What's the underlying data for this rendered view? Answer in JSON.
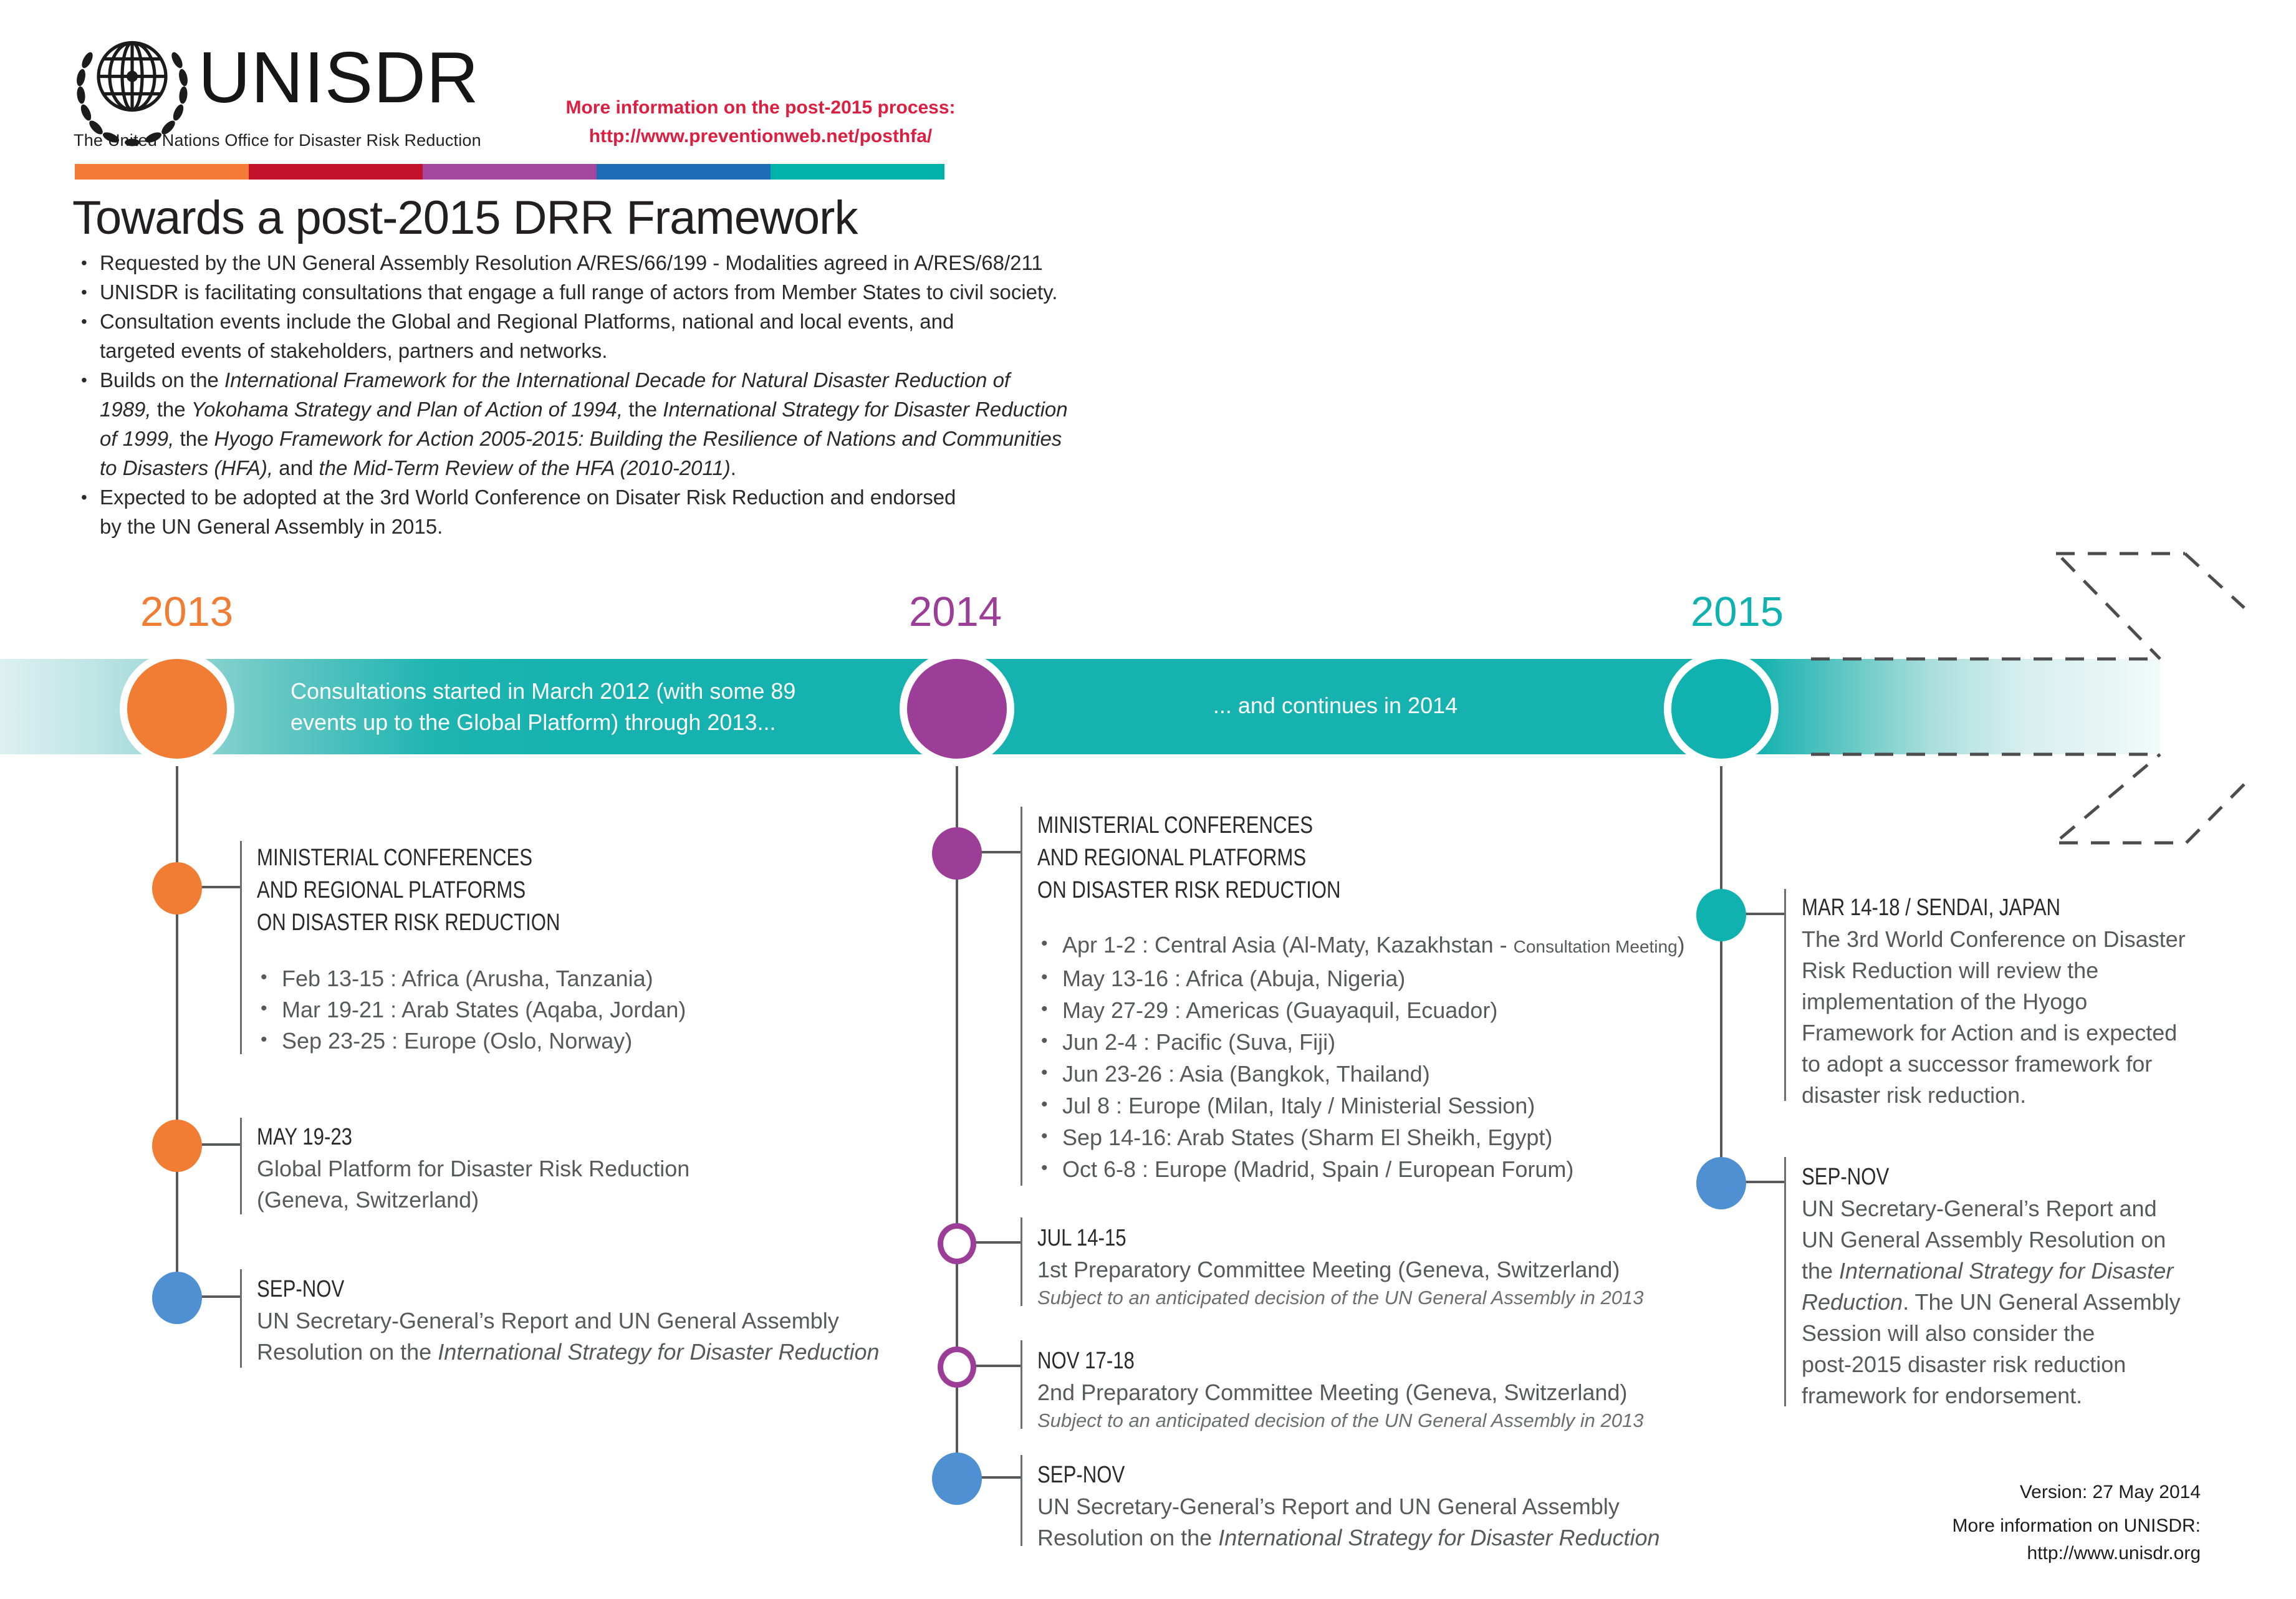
{
  "header": {
    "logo_title": "UNISDR",
    "logo_subtitle": "The United Nations Office for Disaster Risk Reduction",
    "info_label": "More information on the post-2015 process:",
    "info_url": "http://www.preventionweb.net/posthfa/",
    "bar_colors": [
      "#F47B35",
      "#C4122E",
      "#A4459E",
      "#1E6CB5",
      "#00B2A9"
    ]
  },
  "title": "Towards a post-2015 DRR Framework",
  "intro": {
    "bullets": [
      [
        {
          "t": "Requested by the UN General Assembly Resolution A/RES/66/199 - Modalities agreed in A/RES/68/211"
        }
      ],
      [
        {
          "t": "UNISDR is facilitating consultations that engage a full range of actors from Member States to civil society."
        }
      ],
      [
        {
          "t": "Consultation events include the Global and Regional Platforms, national and local events, and\ntargeted events of stakeholders, partners and networks."
        }
      ],
      [
        {
          "t": "Builds on the "
        },
        {
          "t": "International Framework for the International Decade for Natural Disaster Reduction of\n1989,",
          "i": true
        },
        {
          "t": " the "
        },
        {
          "t": "Yokohama Strategy and Plan of Action of 1994,",
          "i": true
        },
        {
          "t": " the "
        },
        {
          "t": "International Strategy for Disaster Reduction\nof 1999,",
          "i": true
        },
        {
          "t": " the "
        },
        {
          "t": "Hyogo Framework for Action 2005-2015: Building the Resilience of Nations and Communities\nto Disasters (HFA),",
          "i": true
        },
        {
          "t": " and "
        },
        {
          "t": "the Mid-Term Review of the HFA (2010-2011)",
          "i": true
        },
        {
          "t": "."
        }
      ],
      [
        {
          "t": "Expected to be adopted at the 3rd World Conference on Disater Risk Reduction and endorsed\nby the UN General Assembly in 2015."
        }
      ]
    ]
  },
  "timeline": {
    "years": [
      {
        "label": "2013",
        "color": "#F07D33"
      },
      {
        "label": "2014",
        "color": "#9C3E98"
      },
      {
        "label": "2015",
        "color": "#0FB2AF"
      }
    ],
    "band_color": "#16B2AF",
    "band_text_2013": "Consultations started in March 2012 (with some 89\nevents up to the Global Platform) through 2013...",
    "band_text_2014": "... and continues in 2014"
  },
  "events": {
    "y2013": [
      {
        "title": "MINISTERIAL CONFERENCES\nAND REGIONAL PLATFORMS\nON DISASTER RISK REDUCTION",
        "list": [
          [
            {
              "t": "Feb 13-15 : Africa (Arusha, Tanzania)"
            }
          ],
          [
            {
              "t": "Mar 19-21 : Arab States (Aqaba, Jordan)"
            }
          ],
          [
            {
              "t": "Sep 23-25 : Europe (Oslo, Norway)"
            }
          ]
        ]
      },
      {
        "title": "MAY 19-23",
        "body": [
          {
            "t": "Global Platform for Disaster Risk Reduction\n(Geneva, Switzerland)"
          }
        ]
      },
      {
        "title": "SEP-NOV",
        "body": [
          {
            "t": "UN Secretary-General’s Report and UN General Assembly\nResolution on the "
          },
          {
            "t": "International Strategy for Disaster Reduction",
            "i": true
          }
        ]
      }
    ],
    "y2014": [
      {
        "title": "MINISTERIAL CONFERENCES\nAND REGIONAL PLATFORMS\nON DISASTER RISK REDUCTION",
        "list": [
          [
            {
              "t": "Apr 1-2 : Central Asia (Al-Maty, Kazakhstan - "
            },
            {
              "t": "Consultation Meeting",
              "s": true
            },
            {
              "t": ")"
            }
          ],
          [
            {
              "t": "May 13-16 : Africa (Abuja, Nigeria)"
            }
          ],
          [
            {
              "t": "May 27-29 : Americas (Guayaquil, Ecuador)"
            }
          ],
          [
            {
              "t": "Jun 2-4 : Pacific (Suva, Fiji)"
            }
          ],
          [
            {
              "t": "Jun 23-26 : Asia (Bangkok, Thailand)"
            }
          ],
          [
            {
              "t": "Jul 8 : Europe (Milan, Italy / Ministerial Session)"
            }
          ],
          [
            {
              "t": "Sep 14-16: Arab States (Sharm El Sheikh, Egypt)"
            }
          ],
          [
            {
              "t": "Oct 6-8 : Europe (Madrid, Spain / European Forum)"
            }
          ]
        ]
      },
      {
        "title": "JUL 14-15",
        "body": [
          {
            "t": "1st Preparatory Committee Meeting (Geneva, Switzerland)"
          }
        ],
        "note": "Subject to an anticipated decision of the UN General Assembly in 2013"
      },
      {
        "title": "NOV 17-18",
        "body": [
          {
            "t": "2nd Preparatory Committee Meeting (Geneva, Switzerland)"
          }
        ],
        "note": "Subject to an anticipated decision of the UN General Assembly in 2013"
      },
      {
        "title": "SEP-NOV",
        "body": [
          {
            "t": "UN Secretary-General’s Report and UN General Assembly\nResolution on the "
          },
          {
            "t": "International Strategy for Disaster Reduction",
            "i": true
          }
        ]
      }
    ],
    "y2015": [
      {
        "title": "MAR 14-18 / SENDAI, JAPAN",
        "body": [
          {
            "t": "The 3rd World Conference on Disaster\nRisk Reduction will review the\nimplementation of the Hyogo\nFramework for Action and is expected\nto adopt a successor framework for\ndisaster risk reduction."
          }
        ]
      },
      {
        "title": "SEP-NOV",
        "body": [
          {
            "t": "UN Secretary-General’s Report and\nUN General Assembly Resolution on\nthe "
          },
          {
            "t": "International Strategy for Disaster\nReduction",
            "i": true
          },
          {
            "t": ". The UN General Assembly\nSession will also consider the\npost-2015 disaster risk reduction\nframework for endorsement."
          }
        ]
      }
    ]
  },
  "footer": {
    "version": "Version: 27 May 2014",
    "more_label": "More information on UNISDR:",
    "more_url": "http://www.unisdr.org"
  },
  "colors": {
    "orange": "#F07D33",
    "purple": "#9C3E98",
    "teal": "#10B2AF",
    "blue": "#4E90D1",
    "red": "#DC1F41",
    "band": "#16B2AF",
    "line_gray": "#58595B",
    "text_gray": "#58595C",
    "dark": "#231F20"
  }
}
